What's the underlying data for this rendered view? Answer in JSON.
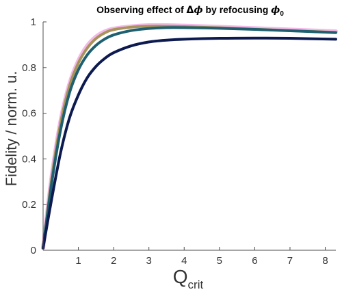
{
  "chart_data": {
    "type": "line",
    "title": {
      "prefix": "Observing effect of ",
      "delta": "Δ",
      "phi": "ϕ",
      "middle": " by refocusing ",
      "phi0": "ϕ",
      "phi0_sub": "0"
    },
    "xlabel": {
      "main": "Q",
      "sub": "crit"
    },
    "ylabel": "Fidelity / norm. u.",
    "xlim": [
      0,
      8.3
    ],
    "ylim": [
      0,
      1
    ],
    "xticks": [
      1,
      2,
      3,
      4,
      5,
      6,
      7,
      8
    ],
    "yticks": [
      0,
      0.2,
      0.4,
      0.6,
      0.8,
      1
    ],
    "ytick_labels": [
      "0",
      "0.2",
      "0.4",
      "0.6",
      "0.8",
      "1"
    ],
    "grid": false,
    "legend": "none",
    "series": [
      {
        "color": "#f4b8e8",
        "x": [
          0,
          0.25,
          0.5,
          0.75,
          1,
          1.25,
          1.5,
          1.75,
          2,
          2.5,
          3,
          3.5,
          4,
          5,
          6,
          7,
          8.3
        ],
        "y": [
          0.01,
          0.33,
          0.57,
          0.73,
          0.83,
          0.895,
          0.935,
          0.958,
          0.97,
          0.98,
          0.985,
          0.985,
          0.983,
          0.978,
          0.972,
          0.966,
          0.958
        ]
      },
      {
        "color": "#a8935a",
        "x": [
          0,
          0.25,
          0.5,
          0.75,
          1,
          1.25,
          1.5,
          1.75,
          2,
          2.5,
          3,
          3.5,
          4,
          5,
          6,
          7,
          8.3
        ],
        "y": [
          0.01,
          0.32,
          0.56,
          0.72,
          0.82,
          0.885,
          0.927,
          0.952,
          0.966,
          0.977,
          0.981,
          0.981,
          0.979,
          0.974,
          0.968,
          0.962,
          0.954
        ]
      },
      {
        "color": "#1e6070",
        "x": [
          0,
          0.25,
          0.5,
          0.75,
          1,
          1.25,
          1.5,
          1.75,
          2,
          2.5,
          3,
          3.5,
          4,
          5,
          6,
          7,
          8.3
        ],
        "y": [
          0.01,
          0.3,
          0.53,
          0.69,
          0.79,
          0.855,
          0.897,
          0.925,
          0.943,
          0.962,
          0.971,
          0.975,
          0.975,
          0.972,
          0.967,
          0.961,
          0.953
        ]
      },
      {
        "color": "#0c1a4f",
        "x": [
          0,
          0.25,
          0.5,
          0.75,
          1,
          1.25,
          1.5,
          1.75,
          2,
          2.5,
          3,
          3.5,
          4,
          5,
          6,
          7,
          8.3
        ],
        "y": [
          0.01,
          0.23,
          0.43,
          0.58,
          0.68,
          0.755,
          0.805,
          0.84,
          0.865,
          0.895,
          0.912,
          0.92,
          0.924,
          0.928,
          0.929,
          0.928,
          0.924
        ]
      }
    ]
  }
}
